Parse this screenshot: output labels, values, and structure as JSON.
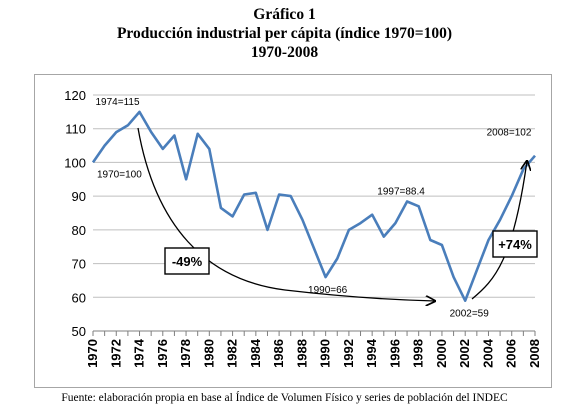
{
  "titles": {
    "line1": "Gráfico 1",
    "line2": "Producción industrial per cápita (índice 1970=100)",
    "line3": "1970-2008"
  },
  "source": "Fuente: elaboración propia en base al Índice de Volumen Físico y series de población del INDEC",
  "colors": {
    "line": "#4a7ebb",
    "grid": "#bfbfbf",
    "axis": "#7f7f7f",
    "text": "#000000"
  },
  "chart_data": {
    "type": "line",
    "x": [
      1970,
      1971,
      1972,
      1973,
      1974,
      1975,
      1976,
      1977,
      1978,
      1979,
      1980,
      1981,
      1982,
      1983,
      1984,
      1985,
      1986,
      1987,
      1988,
      1989,
      1990,
      1991,
      1992,
      1993,
      1994,
      1995,
      1996,
      1997,
      1998,
      1999,
      2000,
      2001,
      2002,
      2003,
      2004,
      2005,
      2006,
      2007,
      2008
    ],
    "series": [
      {
        "values": [
          100,
          105,
          109,
          111,
          115,
          109,
          104,
          108,
          95,
          108.5,
          104,
          86.5,
          84,
          90.5,
          91,
          80,
          90.5,
          90,
          83,
          74.5,
          66,
          71.5,
          80,
          82,
          84.5,
          78,
          82,
          88.4,
          87,
          77,
          75.5,
          66,
          59,
          68,
          77,
          83,
          90,
          98,
          102
        ]
      }
    ],
    "x_tick_labels": [
      "1970",
      "1972",
      "1974",
      "1976",
      "1978",
      "1980",
      "1982",
      "1984",
      "1986",
      "1988",
      "1990",
      "1992",
      "1994",
      "1996",
      "1998",
      "2000",
      "2002",
      "2004",
      "2006",
      "2008"
    ],
    "y_tick_labels": [
      "50",
      "60",
      "70",
      "80",
      "90",
      "100",
      "110",
      "120"
    ],
    "ylim": [
      50,
      120
    ],
    "xlim": [
      1970,
      2008
    ],
    "grid": "horizontal",
    "annotations": [
      {
        "label": "1974=115",
        "x": 1974,
        "y": 115
      },
      {
        "label": "1970=100",
        "x": 1970,
        "y": 100
      },
      {
        "label": "1997=88.4",
        "x": 1997,
        "y": 88.4
      },
      {
        "label": "1990=66",
        "x": 1990,
        "y": 66
      },
      {
        "label": "2002=59",
        "x": 2002,
        "y": 59
      },
      {
        "label": "2008=102",
        "x": 2008,
        "y": 102
      }
    ],
    "callouts": [
      {
        "label": "-49%"
      },
      {
        "label": "+74%"
      }
    ]
  }
}
